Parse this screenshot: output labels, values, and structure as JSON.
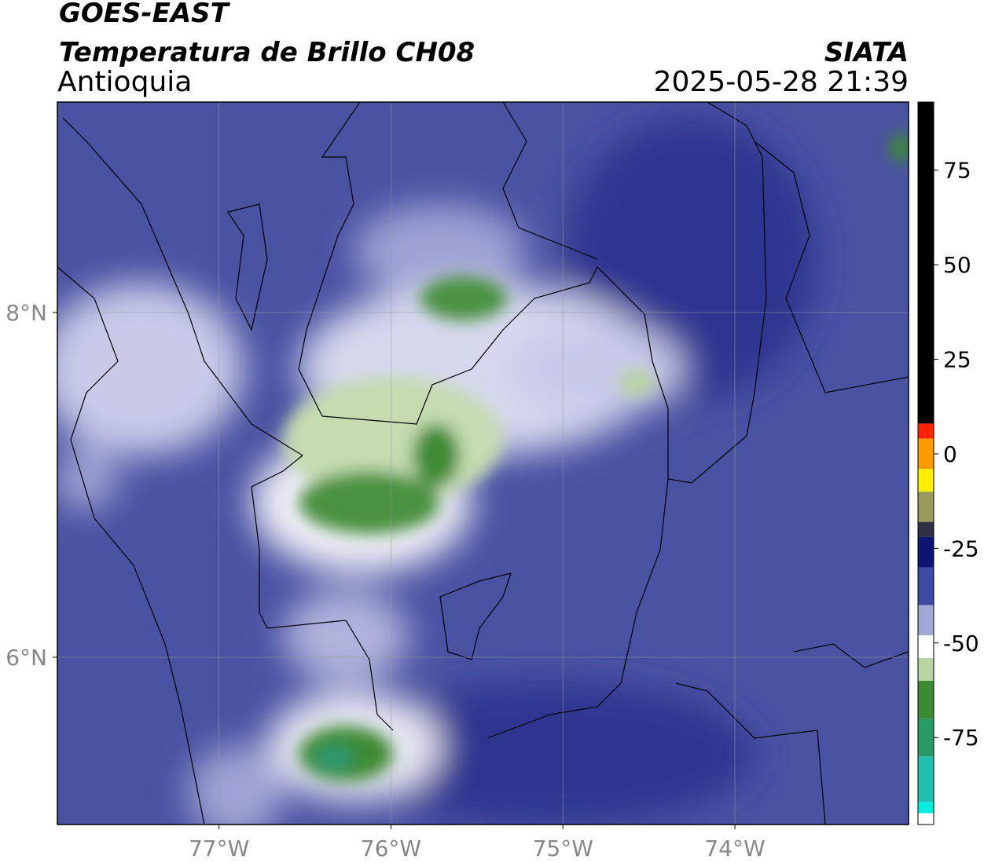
{
  "header": {
    "title": "GOES-EAST",
    "subtitle": "Temperatura de Brillo CH08",
    "region": "Antioquia",
    "source": "SIATA",
    "timestamp": "2025-05-28 21:39"
  },
  "map": {
    "lonlim": [
      -77.94,
      -72.99
    ],
    "latlim": [
      5.03,
      9.22
    ],
    "lonticks": [
      {
        "value": -77,
        "label": "77°W"
      },
      {
        "value": -76,
        "label": "76°W"
      },
      {
        "value": -75,
        "label": "75°W"
      },
      {
        "value": -74,
        "label": "74°W"
      }
    ],
    "latticks": [
      {
        "value": 8,
        "label": "8°N"
      },
      {
        "value": 6,
        "label": "6°N"
      }
    ],
    "grid": true
  },
  "colorbar": {
    "lim": [
      -98,
      93
    ],
    "ticks": [
      75,
      50,
      25,
      0,
      -25,
      -50,
      -75
    ],
    "segments": [
      {
        "from": 8,
        "to": 93,
        "color": "#000000"
      },
      {
        "from": 4,
        "to": 8,
        "color": "#ff2200"
      },
      {
        "from": -4,
        "to": 4,
        "color": "#ff9a00"
      },
      {
        "from": -10,
        "to": -4,
        "color": "#ffee00"
      },
      {
        "from": -18,
        "to": -10,
        "color": "#9a9a58"
      },
      {
        "from": -22,
        "to": -18,
        "color": "#303044"
      },
      {
        "from": -30,
        "to": -22,
        "color": "#0c1474"
      },
      {
        "from": -40,
        "to": -30,
        "color": "#3c4aa2"
      },
      {
        "from": -48,
        "to": -40,
        "color": "#a2a8d4"
      },
      {
        "from": -54,
        "to": -48,
        "color": "#ffffff"
      },
      {
        "from": -60,
        "to": -54,
        "color": "#b8d4a0"
      },
      {
        "from": -70,
        "to": -60,
        "color": "#3c8a32"
      },
      {
        "from": -80,
        "to": -70,
        "color": "#2a9a64"
      },
      {
        "from": -92,
        "to": -80,
        "color": "#22c0b0"
      },
      {
        "from": -95,
        "to": -92,
        "color": "#00eee2"
      },
      {
        "from": -98,
        "to": -95,
        "color": "#ffffff"
      }
    ]
  }
}
